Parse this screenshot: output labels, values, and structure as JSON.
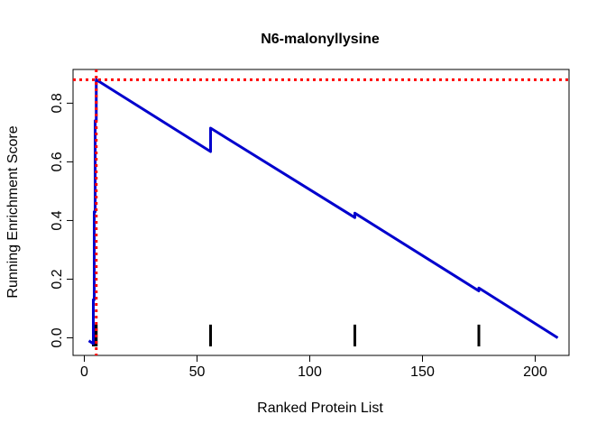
{
  "chart_data": {
    "type": "line",
    "title": "N6-malonyllysine",
    "xlabel": "Ranked Protein List",
    "ylabel": "Running Enrichment Score",
    "xlim": [
      -5,
      215
    ],
    "ylim": [
      -0.06,
      0.915
    ],
    "x_ticks": [
      0,
      50,
      100,
      150,
      200
    ],
    "y_ticks": [
      0.0,
      0.2,
      0.4,
      0.6,
      0.8
    ],
    "grid": false,
    "legend": "none",
    "series": [
      {
        "color": "#0000cd",
        "points": [
          [
            2,
            -0.01
          ],
          [
            4,
            -0.02
          ],
          [
            4,
            0.13
          ],
          [
            4.4,
            0.13
          ],
          [
            4.4,
            0.43
          ],
          [
            4.8,
            0.43
          ],
          [
            4.8,
            0.74
          ],
          [
            5.3,
            0.74
          ],
          [
            5.3,
            0.88
          ],
          [
            56,
            0.635
          ],
          [
            56,
            0.715
          ],
          [
            120,
            0.41
          ],
          [
            120,
            0.425
          ],
          [
            175,
            0.16
          ],
          [
            175,
            0.17
          ],
          [
            210,
            0.0
          ]
        ]
      }
    ],
    "hits": [
      4,
      4.4,
      4.8,
      5.3,
      56,
      120,
      175
    ],
    "max_score": 0.88,
    "max_position": 5.3,
    "colors": {
      "line": "#0000cd",
      "reference": "#ff0000",
      "hits": "#000000"
    }
  }
}
